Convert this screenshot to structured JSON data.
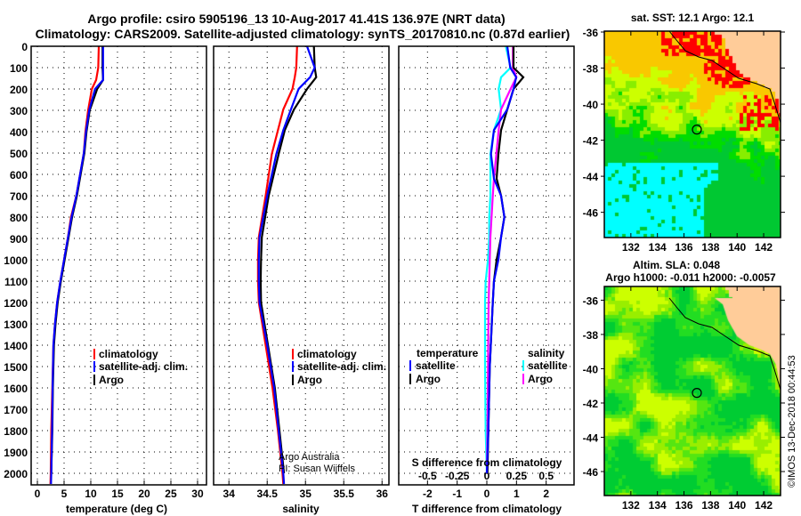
{
  "title": {
    "line1": "Argo profile: csiro 5905196_13 10-Aug-2017 41.41S 136.97E (NRT data)",
    "line2": "Climatology: CARS2009. Satellite-adjusted climatology: synTS_20170810.nc (0.87d earlier)"
  },
  "colors": {
    "climatology": "#ff0000",
    "satellite": "#0000ff",
    "argo": "#000000",
    "s_satellite": "#00ffff",
    "s_argo": "#ff00ff"
  },
  "chart_data": [
    {
      "id": "temp",
      "type": "line",
      "xlabel": "temperature (deg C)",
      "ylabel": "",
      "xlim": [
        -1.17,
        31.67
      ],
      "ylim": [
        2054,
        0
      ],
      "xticks": [
        "0",
        "5",
        "10",
        "15",
        "20",
        "25",
        "30"
      ],
      "yticks": [
        "0",
        "100",
        "200",
        "300",
        "400",
        "500",
        "600",
        "700",
        "800",
        "900",
        "1000",
        "1100",
        "1200",
        "1300",
        "1400",
        "1500",
        "1600",
        "1700",
        "1800",
        "1900",
        "2000"
      ],
      "grid": true,
      "legend": [
        "climatology",
        "satellite-adj. clim.",
        "Argo"
      ],
      "series": [
        {
          "name": "climatology",
          "color": "#ff0000",
          "depth": [
            0,
            100,
            158,
            200,
            300,
            400,
            500,
            600,
            700,
            800,
            900,
            1000,
            1100,
            1200,
            1300,
            1400,
            1600,
            1800,
            2000,
            2050
          ],
          "values": [
            11.5,
            11.4,
            11.0,
            10.2,
            9.5,
            9.0,
            8.7,
            8.0,
            7.3,
            6.3,
            5.7,
            5.0,
            4.3,
            3.7,
            3.3,
            3.0,
            2.8,
            2.6,
            2.5,
            2.45
          ]
        },
        {
          "name": "Argo",
          "color": "#000000",
          "depth": [
            0,
            100,
            158,
            200,
            300,
            400,
            500,
            600,
            700,
            800,
            900,
            1000,
            1100,
            1200,
            1300,
            1400,
            1600,
            1800,
            2000
          ],
          "values": [
            12.2,
            12.2,
            12.3,
            11.2,
            9.8,
            9.2,
            8.8,
            8.1,
            7.4,
            6.5,
            5.8,
            5.1,
            4.4,
            3.8,
            3.4,
            3.1,
            2.9,
            2.8,
            2.6
          ]
        },
        {
          "name": "satellite-adj. clim.",
          "color": "#0000ff",
          "depth": [
            0,
            100,
            158,
            200,
            300,
            400,
            500,
            600,
            700,
            800,
            900,
            1000,
            1100,
            1200,
            1300,
            1400,
            1600,
            1800,
            2000,
            2050
          ],
          "values": [
            12.3,
            12.3,
            12.3,
            10.8,
            9.7,
            9.1,
            8.7,
            8.0,
            7.3,
            6.4,
            5.7,
            5.0,
            4.3,
            3.7,
            3.3,
            3.0,
            2.85,
            2.75,
            2.6,
            2.55
          ]
        }
      ]
    },
    {
      "id": "sal",
      "type": "line",
      "xlabel": "salinity",
      "xlim": [
        33.8,
        36.09
      ],
      "ylim": [
        2054,
        0
      ],
      "xticks": [
        "34",
        "34.5",
        "35",
        "35.5",
        "36"
      ],
      "grid": true,
      "legend": [
        "climatology",
        "satellite-adj. clim.",
        "Argo"
      ],
      "annotations": [
        "Argo Australia",
        "PI: Susan Wijffels"
      ],
      "series": [
        {
          "name": "climatology",
          "color": "#ff0000",
          "depth": [
            0,
            100,
            145,
            200,
            296,
            393,
            505,
            700,
            894,
            1000,
            1100,
            1200,
            1400,
            1600,
            1800,
            2000,
            2050
          ],
          "values": [
            34.89,
            34.88,
            34.86,
            34.83,
            34.71,
            34.64,
            34.56,
            34.48,
            34.39,
            34.38,
            34.38,
            34.39,
            34.48,
            34.57,
            34.64,
            34.7,
            34.71
          ]
        },
        {
          "name": "Argo",
          "color": "#000000",
          "depth": [
            0,
            100,
            145,
            200,
            296,
            393,
            505,
            700,
            894,
            1000,
            1100,
            1200,
            1400,
            1600,
            1800,
            2000
          ],
          "values": [
            35.11,
            35.12,
            35.14,
            35.02,
            34.85,
            34.73,
            34.65,
            34.52,
            34.43,
            34.42,
            34.415,
            34.42,
            34.51,
            34.6,
            34.66,
            34.72
          ]
        },
        {
          "name": "satellite-adj. clim.",
          "color": "#0000ff",
          "depth": [
            0,
            100,
            145,
            200,
            296,
            393,
            505,
            700,
            894,
            1000,
            1100,
            1200,
            1400,
            1600,
            1800,
            2000,
            2050
          ],
          "values": [
            35.02,
            35.12,
            35.06,
            34.91,
            34.81,
            34.71,
            34.62,
            34.5,
            34.4,
            34.39,
            34.39,
            34.4,
            34.5,
            34.59,
            34.65,
            34.71,
            34.72
          ]
        }
      ]
    },
    {
      "id": "diff",
      "type": "line",
      "xlabel": "T difference from climatology",
      "xlabel2": "S difference from climatology",
      "xlim": [
        -2.97,
        2.94
      ],
      "ylim": [
        2054,
        0
      ],
      "xticks": [
        "-2",
        "-1",
        "0",
        "1",
        "2"
      ],
      "xticks2": [
        "-0.5",
        "-0.25",
        "0",
        "0.25",
        "0.5"
      ],
      "grid": true,
      "legend_t_title": "temperature",
      "legend_s_title": "salinity",
      "legend_t": [
        "satellite",
        "Argo"
      ],
      "legend_s": [
        "satellite",
        "Argo"
      ],
      "series": [
        {
          "name": "S satellite",
          "axis": "S",
          "color": "#00ffff",
          "depth": [
            0,
            100,
            145,
            200,
            296,
            393,
            505,
            620,
            700,
            800,
            894,
            1000,
            1100,
            1200,
            1500,
            1800,
            2000
          ],
          "values": [
            0.16,
            0.2,
            0.12,
            0.1,
            0.12,
            0.06,
            0.03,
            0.03,
            0.03,
            0.02,
            0.02,
            0.01,
            -0.01,
            -0.015,
            -0.015,
            -0.01,
            0
          ]
        },
        {
          "name": "S Argo",
          "axis": "S",
          "color": "#ff00ff",
          "depth": [
            0,
            100,
            145,
            200,
            296,
            393,
            505,
            620,
            700,
            800,
            894,
            1000,
            1100,
            1200,
            1500,
            1800,
            2000
          ],
          "values": [
            0.22,
            0.22,
            0.25,
            0.2,
            0.12,
            0.1,
            0.08,
            0.06,
            0.05,
            0.04,
            0.03,
            0.025,
            0.02,
            0.015,
            0.01,
            0.005,
            0
          ]
        },
        {
          "name": "T Argo",
          "axis": "T",
          "color": "#000000",
          "depth": [
            0,
            100,
            145,
            200,
            296,
            393,
            505,
            620,
            700,
            800,
            894,
            1000,
            1100,
            1200,
            1500,
            1800,
            2000
          ],
          "values": [
            0.9,
            0.9,
            1.23,
            0.9,
            0.69,
            0.48,
            0.39,
            0.33,
            0.48,
            0.59,
            0.48,
            0.33,
            0.24,
            0.2,
            0.1,
            0.05,
            0.02
          ]
        },
        {
          "name": "T satellite",
          "axis": "T",
          "color": "#0000ff",
          "depth": [
            0,
            100,
            145,
            200,
            296,
            393,
            505,
            620,
            700,
            800,
            894,
            1000,
            1100,
            1200,
            1500,
            1800,
            2000
          ],
          "values": [
            0.69,
            0.79,
            0.99,
            0.9,
            0.69,
            0.24,
            0.14,
            0.24,
            0.48,
            0.59,
            0.48,
            0.39,
            0.24,
            0.2,
            0.1,
            0.05,
            0
          ]
        }
      ]
    }
  ],
  "maps": [
    {
      "id": "sst",
      "title": "sat. SST: 12.1 Argo: 12.1",
      "lon_ticks": [
        "132",
        "134",
        "136",
        "138",
        "140",
        "142"
      ],
      "lat_ticks": [
        "-36",
        "-38",
        "-40",
        "-42",
        "-44",
        "-46"
      ],
      "lon_range": [
        130.0,
        143.27
      ],
      "lat_range": [
        -35.95,
        -47.4
      ],
      "argo_position": {
        "lon": 136.97,
        "lat": -41.41
      },
      "palette": [
        "#00ffff",
        "#00c832",
        "#00dd00",
        "#88ee00",
        "#ccff00",
        "#f9c800",
        "#ff0000"
      ],
      "land_color": "#ffcc99"
    },
    {
      "id": "sla",
      "title": "Altim. SLA: 0.048",
      "subtitle": "Argo h1000: -0.011 h2000: -0.0057",
      "lon_ticks": [
        "132",
        "134",
        "136",
        "138",
        "140",
        "142"
      ],
      "lat_ticks": [
        "-36",
        "-38",
        "-40",
        "-42",
        "-44",
        "-46"
      ],
      "lon_range": [
        130.0,
        143.27
      ],
      "lat_range": [
        -35.2,
        -47.4
      ],
      "argo_position": {
        "lon": 136.97,
        "lat": -41.41
      },
      "palette": [
        "#00cc33",
        "#22dd22",
        "#55e611",
        "#99ee00",
        "#ccff00"
      ],
      "land_color": "#ffcc99"
    }
  ],
  "copyright": "©IMOS 13-Dec-2018 00:44:53"
}
